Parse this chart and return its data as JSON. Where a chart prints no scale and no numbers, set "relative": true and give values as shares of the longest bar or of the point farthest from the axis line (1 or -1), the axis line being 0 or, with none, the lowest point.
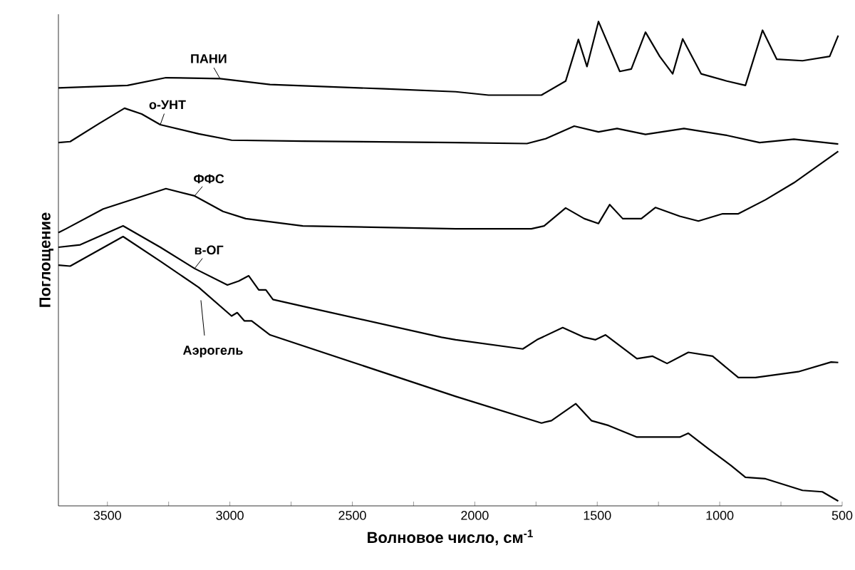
{
  "chart_data": {
    "type": "line",
    "relative": true,
    "xlabel": "Волновое число, см$^{-1}$",
    "ylabel": "Поглощение",
    "xlim": [
      3700,
      500
    ],
    "xticks": [
      3500,
      {
        "value": 3250,
        "label": null
      },
      3000,
      {
        "value": 2750,
        "label": null
      },
      2500,
      {
        "value": 2250,
        "label": null
      },
      2000,
      {
        "value": 1750,
        "label": null
      },
      1500,
      {
        "value": 1250,
        "label": null
      },
      1000,
      {
        "value": 750,
        "label": null
      },
      500
    ],
    "tick_labels": "x",
    "series": [
      {
        "name": "ПАНИ",
        "color": "#000000",
        "x": [
          3700,
          3418,
          3261,
          3040,
          2836,
          2369,
          2078,
          1944,
          1728,
          1629,
          1577,
          1542,
          1495,
          1408,
          1361,
          1303,
          1245,
          1192,
          1151,
          1076,
          971,
          895,
          825,
          767,
          662,
          551,
          516
        ],
        "values": [
          0.863,
          0.868,
          0.884,
          0.882,
          0.87,
          0.861,
          0.855,
          0.848,
          0.848,
          0.877,
          0.963,
          0.907,
          1.0,
          0.897,
          0.902,
          0.978,
          0.928,
          0.892,
          0.964,
          0.892,
          0.877,
          0.868,
          0.982,
          0.922,
          0.919,
          0.928,
          0.971
        ]
      },
      {
        "name": "о-УНТ",
        "color": "#000000",
        "x": [
          3700,
          3652,
          3535,
          3430,
          3360,
          3284,
          3127,
          2993,
          2702,
          2078,
          1787,
          1711,
          1594,
          1495,
          1419,
          1303,
          1146,
          971,
          837,
          697,
          516
        ],
        "values": [
          0.75,
          0.752,
          0.789,
          0.821,
          0.809,
          0.787,
          0.768,
          0.755,
          0.753,
          0.75,
          0.748,
          0.758,
          0.784,
          0.772,
          0.779,
          0.767,
          0.779,
          0.765,
          0.75,
          0.757,
          0.747
        ]
      },
      {
        "name": "ФФС",
        "color": "#000000",
        "x": [
          3700,
          3669,
          3517,
          3261,
          3144,
          3028,
          2935,
          2702,
          2078,
          1769,
          1717,
          1629,
          1553,
          1495,
          1449,
          1396,
          1320,
          1262,
          1163,
          1087,
          988,
          924,
          813,
          697,
          516
        ],
        "values": [
          0.564,
          0.572,
          0.613,
          0.655,
          0.64,
          0.608,
          0.593,
          0.578,
          0.572,
          0.572,
          0.578,
          0.615,
          0.593,
          0.583,
          0.622,
          0.593,
          0.593,
          0.616,
          0.598,
          0.588,
          0.603,
          0.603,
          0.632,
          0.667,
          0.732
        ]
      },
      {
        "name": "в-ОГ",
        "color": "#000000",
        "x": [
          3700,
          3611,
          3436,
          3284,
          3144,
          3010,
          2964,
          2923,
          2882,
          2853,
          2824,
          2702,
          2136,
          2078,
          1804,
          1746,
          1641,
          1553,
          1507,
          1466,
          1338,
          1274,
          1215,
          1128,
          1029,
          924,
          854,
          679,
          545,
          516
        ],
        "values": [
          0.534,
          0.539,
          0.578,
          0.534,
          0.49,
          0.456,
          0.464,
          0.475,
          0.446,
          0.446,
          0.426,
          0.412,
          0.348,
          0.343,
          0.324,
          0.343,
          0.368,
          0.348,
          0.343,
          0.353,
          0.304,
          0.309,
          0.294,
          0.317,
          0.309,
          0.265,
          0.265,
          0.277,
          0.297,
          0.296
        ]
      },
      {
        "name": "Аэрогель",
        "color": "#000000",
        "x": [
          3700,
          3652,
          3436,
          3284,
          3127,
          2993,
          2970,
          2941,
          2911,
          2836,
          2078,
          1728,
          1687,
          1588,
          1524,
          1454,
          1338,
          1163,
          1128,
          1046,
          953,
          895,
          813,
          662,
          581,
          516
        ],
        "values": [
          0.497,
          0.495,
          0.556,
          0.505,
          0.451,
          0.392,
          0.399,
          0.382,
          0.382,
          0.353,
          0.226,
          0.171,
          0.176,
          0.211,
          0.176,
          0.166,
          0.142,
          0.142,
          0.15,
          0.118,
          0.083,
          0.059,
          0.056,
          0.032,
          0.029,
          0.01
        ]
      }
    ]
  }
}
